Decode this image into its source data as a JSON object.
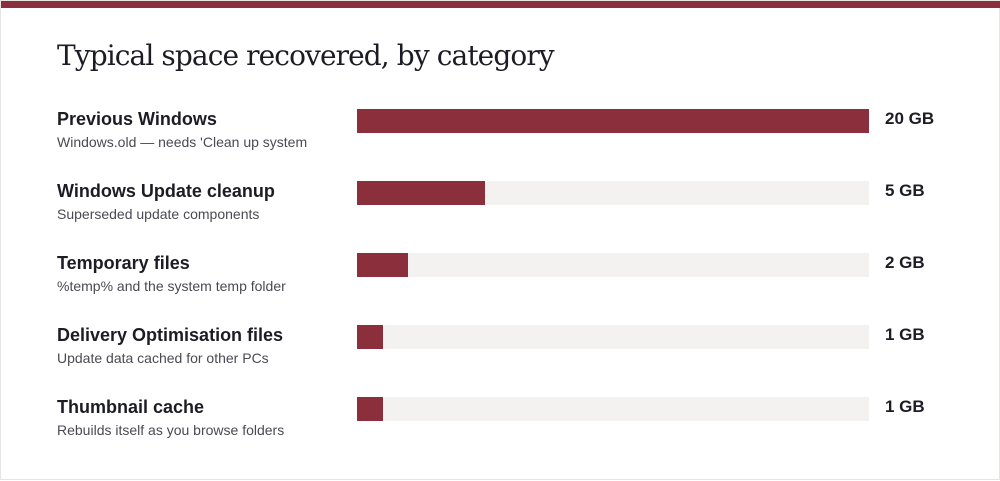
{
  "colors": {
    "accent": "#8c2f3c",
    "track": "#f3f2f0",
    "text": "#1c1c24",
    "muted": "#4a4a52"
  },
  "chart_data": {
    "type": "bar",
    "orientation": "horizontal",
    "title": "Typical space recovered, by category",
    "unit": "GB",
    "xlim": [
      0,
      20
    ],
    "grid": false,
    "categories": [
      "Previous Windows",
      "Windows Update cleanup",
      "Temporary files",
      "Delivery Optimisation files",
      "Thumbnail cache"
    ],
    "descriptions": [
      "Windows.old — needs 'Clean up system",
      "Superseded update components",
      "%temp% and the system temp folder",
      "Update data cached for other PCs",
      "Rebuilds itself as you browse folders"
    ],
    "values": [
      20,
      5,
      2,
      1,
      1
    ],
    "value_labels": [
      "20 GB",
      "5 GB",
      "2 GB",
      "1 GB",
      "1 GB"
    ]
  }
}
